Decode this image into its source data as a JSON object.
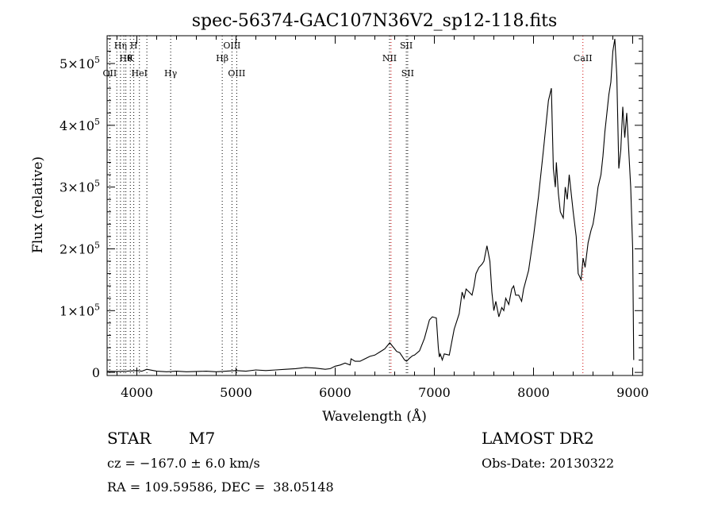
{
  "chart_data": {
    "type": "line",
    "title": "spec-56374-GAC107N36V2_sp12-118.fits",
    "xlabel": "Wavelength (Å)",
    "ylabel": "Flux (relative)",
    "xlim": [
      3700,
      9100
    ],
    "ylim": [
      -5000,
      545000
    ],
    "xticks": [
      {
        "value": 4000,
        "label": "4000"
      },
      {
        "value": 5000,
        "label": "5000"
      },
      {
        "value": 6000,
        "label": "6000"
      },
      {
        "value": 7000,
        "label": "7000"
      },
      {
        "value": 8000,
        "label": "8000"
      },
      {
        "value": 9000,
        "label": "9000"
      }
    ],
    "yticks": [
      {
        "value": 0,
        "mant": "0",
        "exp": ""
      },
      {
        "value": 100000,
        "mant": "1×10",
        "exp": "5"
      },
      {
        "value": 200000,
        "mant": "2×10",
        "exp": "5"
      },
      {
        "value": 300000,
        "mant": "3×10",
        "exp": "5"
      },
      {
        "value": 400000,
        "mant": "4×10",
        "exp": "5"
      },
      {
        "value": 500000,
        "mant": "5×10",
        "exp": "5"
      }
    ],
    "lines": [
      {
        "x": 3727,
        "color": "#000000",
        "label": "OII",
        "row": 3
      },
      {
        "x": 3798,
        "color": "#000000",
        "label": "",
        "row": 0
      },
      {
        "x": 3835,
        "color": "#000000",
        "label": "Hη",
        "row": 1
      },
      {
        "x": 3869,
        "color": "#000000",
        "label": "",
        "row": 0
      },
      {
        "x": 3889,
        "color": "#000000",
        "label": "Hθ",
        "row": 2
      },
      {
        "x": 3934,
        "color": "#000000",
        "label": "K",
        "row": 2
      },
      {
        "x": 3969,
        "color": "#000000",
        "label": "H",
        "row": 1
      },
      {
        "x": 4026,
        "color": "#000000",
        "label": "HeI",
        "row": 3
      },
      {
        "x": 4341,
        "color": "#000000",
        "label": "Hγ",
        "row": 3
      },
      {
        "x": 4861,
        "color": "#000000",
        "label": "Hβ",
        "row": 2
      },
      {
        "x": 4959,
        "color": "#000000",
        "label": "OIII",
        "row": 1
      },
      {
        "x": 5007,
        "color": "#000000",
        "label": "OIII",
        "row": 3
      },
      {
        "x": 6548,
        "color": "#000000",
        "label": "NII",
        "row": 2
      },
      {
        "x": 6717,
        "color": "#000000",
        "label": "SII",
        "row": 1
      },
      {
        "x": 6731,
        "color": "#000000",
        "label": "SII",
        "row": 3
      },
      {
        "x": 4101,
        "color": "#000000",
        "label": "",
        "row": 0
      },
      {
        "x": 6563,
        "color": "#cc0000",
        "label": "",
        "row": 0
      },
      {
        "x": 8498,
        "color": "#cc0000",
        "label": "CaII",
        "row": 2
      }
    ],
    "series": [
      {
        "x": [
          3700,
          3800,
          3900,
          4000,
          4050,
          4100,
          4200,
          4300,
          4400,
          4500,
          4600,
          4700,
          4800,
          4900,
          5000,
          5100,
          5200,
          5300,
          5400,
          5500,
          5600,
          5700,
          5800,
          5900,
          5950,
          6000,
          6050,
          6100,
          6150,
          6160,
          6200,
          6250,
          6300,
          6350,
          6400,
          6450,
          6500,
          6550,
          6580,
          6600,
          6620,
          6650,
          6680,
          6700,
          6720,
          6750,
          6780,
          6800,
          6850,
          6900,
          6950,
          6980,
          7000,
          7020,
          7040,
          7050,
          7060,
          7080,
          7100,
          7150,
          7200,
          7250,
          7280,
          7300,
          7320,
          7350,
          7380,
          7400,
          7420,
          7450,
          7480,
          7500,
          7530,
          7560,
          7580,
          7600,
          7620,
          7650,
          7680,
          7700,
          7720,
          7750,
          7780,
          7800,
          7820,
          7850,
          7880,
          7900,
          7950,
          8000,
          8050,
          8100,
          8150,
          8180,
          8200,
          8220,
          8230,
          8250,
          8270,
          8300,
          8320,
          8340,
          8360,
          8380,
          8400,
          8430,
          8450,
          8480,
          8500,
          8520,
          8550,
          8580,
          8600,
          8620,
          8650,
          8680,
          8700,
          8720,
          8740,
          8760,
          8780,
          8800,
          8820,
          8840,
          8860,
          8880,
          8900,
          8920,
          8940,
          8960,
          8980,
          9000,
          9010
        ],
        "y": [
          2000,
          1500,
          2000,
          3000,
          2000,
          5000,
          2000,
          1000,
          2000,
          1000,
          1500,
          2000,
          1000,
          2000,
          3000,
          2000,
          4000,
          3000,
          4000,
          5000,
          6000,
          8000,
          7000,
          5000,
          6000,
          10000,
          12000,
          15000,
          12000,
          22000,
          18000,
          18000,
          22000,
          26000,
          28000,
          33000,
          38000,
          48000,
          42000,
          38000,
          34000,
          32000,
          25000,
          20000,
          18000,
          23000,
          27000,
          28000,
          35000,
          55000,
          85000,
          90000,
          89000,
          88000,
          40000,
          25000,
          30000,
          20000,
          30000,
          28000,
          70000,
          95000,
          130000,
          120000,
          135000,
          130000,
          125000,
          140000,
          160000,
          170000,
          175000,
          180000,
          205000,
          180000,
          130000,
          100000,
          115000,
          90000,
          105000,
          100000,
          120000,
          110000,
          135000,
          140000,
          125000,
          125000,
          115000,
          135000,
          165000,
          220000,
          285000,
          360000,
          440000,
          460000,
          330000,
          300000,
          340000,
          290000,
          260000,
          250000,
          300000,
          280000,
          320000,
          290000,
          260000,
          220000,
          160000,
          150000,
          185000,
          170000,
          210000,
          230000,
          240000,
          260000,
          300000,
          320000,
          350000,
          390000,
          420000,
          450000,
          470000,
          520000,
          540000,
          480000,
          330000,
          360000,
          430000,
          380000,
          420000,
          360000,
          300000,
          200000,
          20000
        ],
        "color": "#000000"
      }
    ]
  },
  "info": {
    "object_class": "STAR",
    "subclass": "M7",
    "survey": "LAMOST DR2",
    "cz": "cz = −167.0 ± 6.0 km/s",
    "obs_date": "Obs-Date: 20130322",
    "coords": "RA = 109.59586, DEC =  38.05148"
  }
}
